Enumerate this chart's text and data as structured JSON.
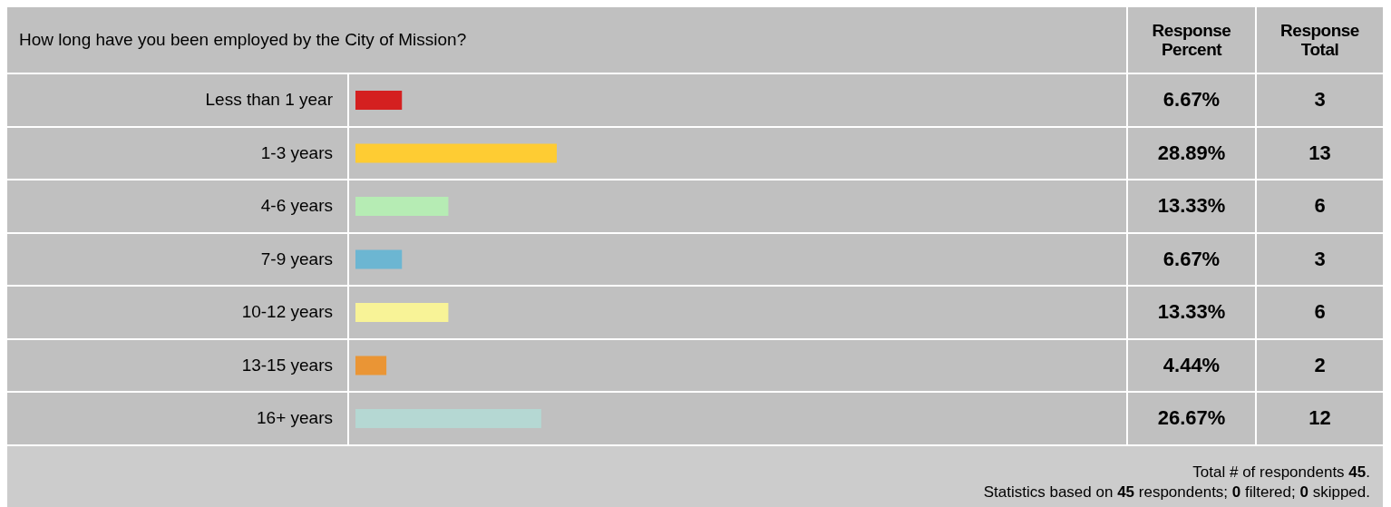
{
  "chart_data": {
    "type": "bar",
    "orientation": "horizontal",
    "title": "How long have you been employed by the City of Mission?",
    "categories": [
      "Less than 1 year",
      "1-3 years",
      "4-6 years",
      "7-9 years",
      "10-12 years",
      "13-15 years",
      "16+ years"
    ],
    "values": [
      6.67,
      28.89,
      13.33,
      6.67,
      13.33,
      4.44,
      26.67
    ],
    "colors": [
      "#d42020",
      "#fecc33",
      "#b6ecb4",
      "#6cb6d2",
      "#f8f397",
      "#ea9535",
      "#b5d8d3"
    ],
    "value_labels": [
      "6.67%",
      "28.89%",
      "13.33%",
      "6.67%",
      "13.33%",
      "4.44%",
      "26.67%"
    ],
    "annotations": [
      "Response Percent",
      "Response Total",
      "3",
      "13",
      "6",
      "3",
      "6",
      "2",
      "12",
      "Total # of respondents 45.",
      "Statistics based on 45 respondents; 0 filtered; 0 skipped."
    ]
  }
}
